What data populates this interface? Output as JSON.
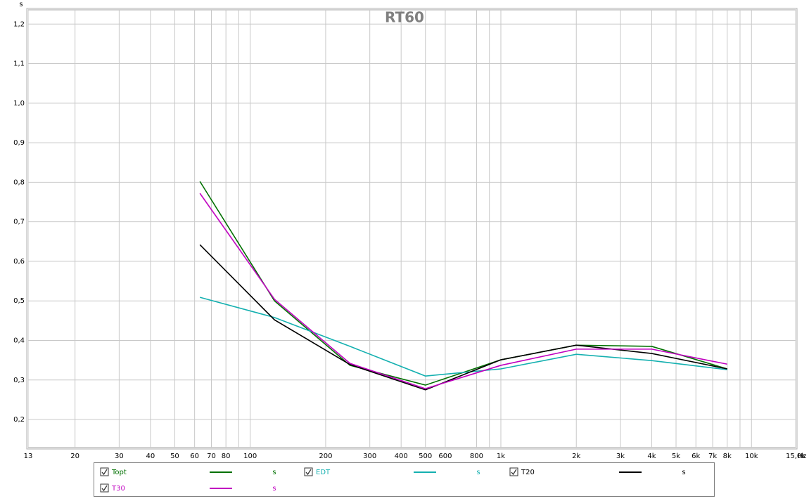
{
  "chart_data": {
    "type": "line",
    "title": "RT60",
    "y_unit": "s",
    "x_unit": "Hz",
    "log_x": true,
    "grid": true,
    "x": [
      63,
      125,
      250,
      500,
      1000,
      2000,
      4000,
      8000
    ],
    "series": [
      {
        "name": "Topt",
        "unit": "s",
        "color": "#007000",
        "values": [
          0.802,
          0.5,
          0.337,
          0.287,
          0.351,
          0.388,
          0.385,
          0.328
        ]
      },
      {
        "name": "EDT",
        "unit": "s",
        "color": "#14b0b0",
        "values": [
          0.509,
          0.458,
          0.385,
          0.31,
          0.328,
          0.365,
          0.349,
          0.326
        ]
      },
      {
        "name": "T20",
        "unit": "s",
        "color": "#000000",
        "values": [
          0.642,
          0.452,
          0.339,
          0.275,
          0.351,
          0.388,
          0.367,
          0.328
        ]
      },
      {
        "name": "T30",
        "unit": "s",
        "color": "#c000c0",
        "values": [
          0.772,
          0.504,
          0.342,
          0.278,
          0.337,
          0.378,
          0.378,
          0.34
        ]
      }
    ],
    "xlim": [
      13,
      15000
    ],
    "xticks": [
      13,
      20,
      30,
      40,
      50,
      60,
      70,
      80,
      100,
      200,
      300,
      400,
      500,
      600,
      800,
      {
        "value": 1000,
        "label": "1k"
      },
      {
        "value": 2000,
        "label": "2k"
      },
      {
        "value": 3000,
        "label": "3k"
      },
      {
        "value": 4000,
        "label": "4k"
      },
      {
        "value": 5000,
        "label": "5k"
      },
      {
        "value": 6000,
        "label": "6k"
      },
      {
        "value": 7000,
        "label": "7k"
      },
      {
        "value": 8000,
        "label": "8k"
      },
      {
        "value": 10000,
        "label": "10k"
      },
      {
        "value": 15000,
        "label": "15,0k"
      }
    ],
    "x_minor_grid": [
      90,
      900,
      9000
    ],
    "ylim": [
      0.129,
      1.236
    ],
    "yticks": [
      {
        "value": 0.2,
        "label": "0,2"
      },
      {
        "value": 0.3,
        "label": "0,3"
      },
      {
        "value": 0.4,
        "label": "0,4"
      },
      {
        "value": 0.5,
        "label": "0,5"
      },
      {
        "value": 0.6,
        "label": "0,6"
      },
      {
        "value": 0.7,
        "label": "0,7"
      },
      {
        "value": 0.8,
        "label": "0,8"
      },
      {
        "value": 0.9,
        "label": "0,9"
      },
      {
        "value": 1.0,
        "label": "1,0"
      },
      {
        "value": 1.1,
        "label": "1,1"
      },
      {
        "value": 1.2,
        "label": "1,2"
      }
    ]
  }
}
